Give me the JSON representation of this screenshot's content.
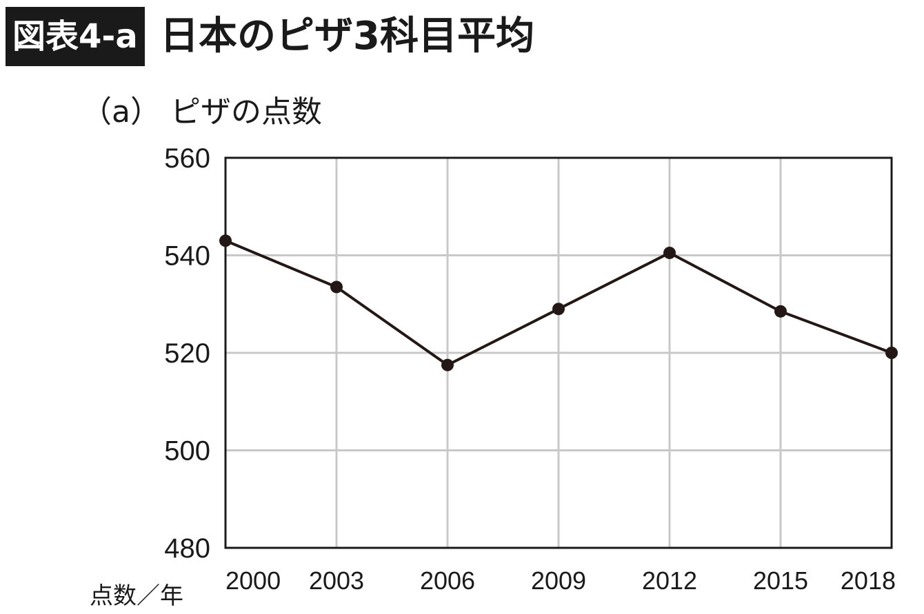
{
  "header": {
    "badge": "図表4-a",
    "title": "日本のピザ3科目平均"
  },
  "chart_data": {
    "type": "line",
    "subtitle": "（a） ピザの点数",
    "axis_unit_label": "点数／年",
    "x": [
      "2000",
      "2003",
      "2006",
      "2009",
      "2012",
      "2015",
      "2018"
    ],
    "series": [
      {
        "values": [
          543,
          533.5,
          517.5,
          529,
          540.5,
          528.5,
          520
        ]
      }
    ],
    "yticks": [
      480,
      500,
      520,
      540,
      560
    ],
    "ylim": [
      480,
      560
    ],
    "grid": true,
    "line_color": "#231815",
    "grid_color": "#c8c8c8",
    "frame_color": "#1a1a1a"
  }
}
